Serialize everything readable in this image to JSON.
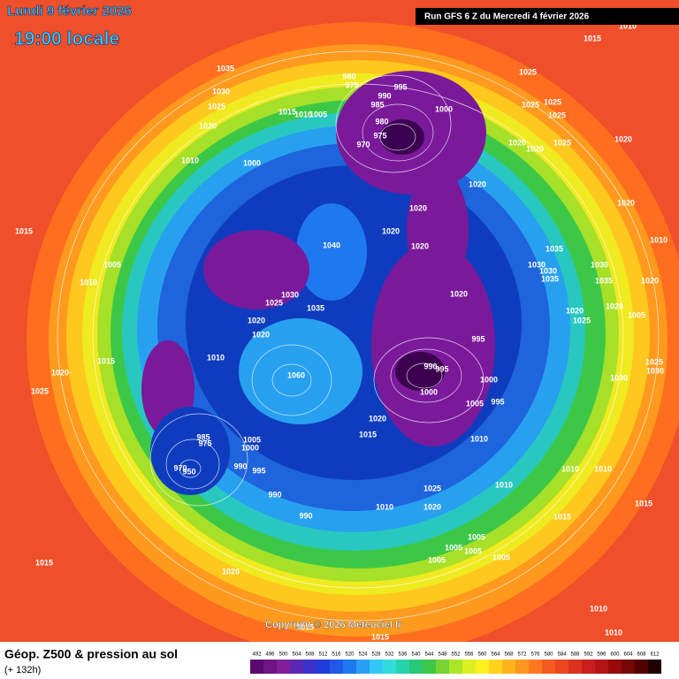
{
  "header": {
    "date": "Lundi 9 février 2026",
    "time": "19:00 locale",
    "run": "Run GFS 6 Z du Mercredi 4 février 2026"
  },
  "map": {
    "isobar_labels": [
      1035,
      1030,
      1025,
      1020,
      1010,
      1000,
      1015,
      1010,
      1005,
      980,
      975,
      990,
      995,
      985,
      980,
      975,
      970,
      1000,
      1025,
      1025,
      1025,
      1025,
      1025,
      1020,
      1020,
      1020,
      1015,
      1010,
      1020,
      1020,
      1020,
      1020,
      1020,
      1040,
      1035,
      1030,
      1030,
      1035,
      1030,
      1035,
      1010,
      1020,
      1020,
      1020,
      1005,
      1025,
      1015,
      1005,
      1010,
      1015,
      1020,
      1025,
      1030,
      1025,
      1035,
      1020,
      1020,
      1010,
      1060,
      1020,
      995,
      990,
      995,
      1000,
      1000,
      995,
      1005,
      1020,
      1015,
      1010,
      1005,
      1000,
      985,
      975,
      995,
      990,
      970,
      950,
      990,
      990,
      1010,
      1025,
      1020,
      1010,
      1010,
      1010,
      1015,
      1015,
      1005,
      1005,
      1005,
      1005,
      1005,
      1015,
      1020,
      1015,
      1015,
      1010,
      1010,
      1025,
      1030,
      1030
    ]
  },
  "copyright": "Copyright © 2026 Meteociel.fr",
  "footer": {
    "title": "Géop. Z500 & pression au sol",
    "lead": "(+ 132h)"
  },
  "colorbar": {
    "ticks": [
      492,
      496,
      500,
      504,
      508,
      512,
      516,
      520,
      524,
      528,
      532,
      536,
      540,
      544,
      548,
      552,
      556,
      560,
      564,
      568,
      572,
      576,
      580,
      584,
      588,
      592,
      596,
      600,
      604,
      608,
      612
    ],
    "colors": [
      "#5a0a6e",
      "#6e1484",
      "#821e9a",
      "#5a28b4",
      "#3c32c8",
      "#1e3cdc",
      "#1e5ae6",
      "#1e78f0",
      "#28a0f5",
      "#32c8f5",
      "#32dcdc",
      "#28d2aa",
      "#28c878",
      "#3cc846",
      "#78d232",
      "#aae628",
      "#dcf020",
      "#fff01e",
      "#ffd21e",
      "#ffb41e",
      "#ff961e",
      "#ff781e",
      "#f55a1e",
      "#eb461e",
      "#dc321e",
      "#c81e1e",
      "#b41414",
      "#960a0a",
      "#780505",
      "#500000",
      "#1e0000"
    ]
  }
}
